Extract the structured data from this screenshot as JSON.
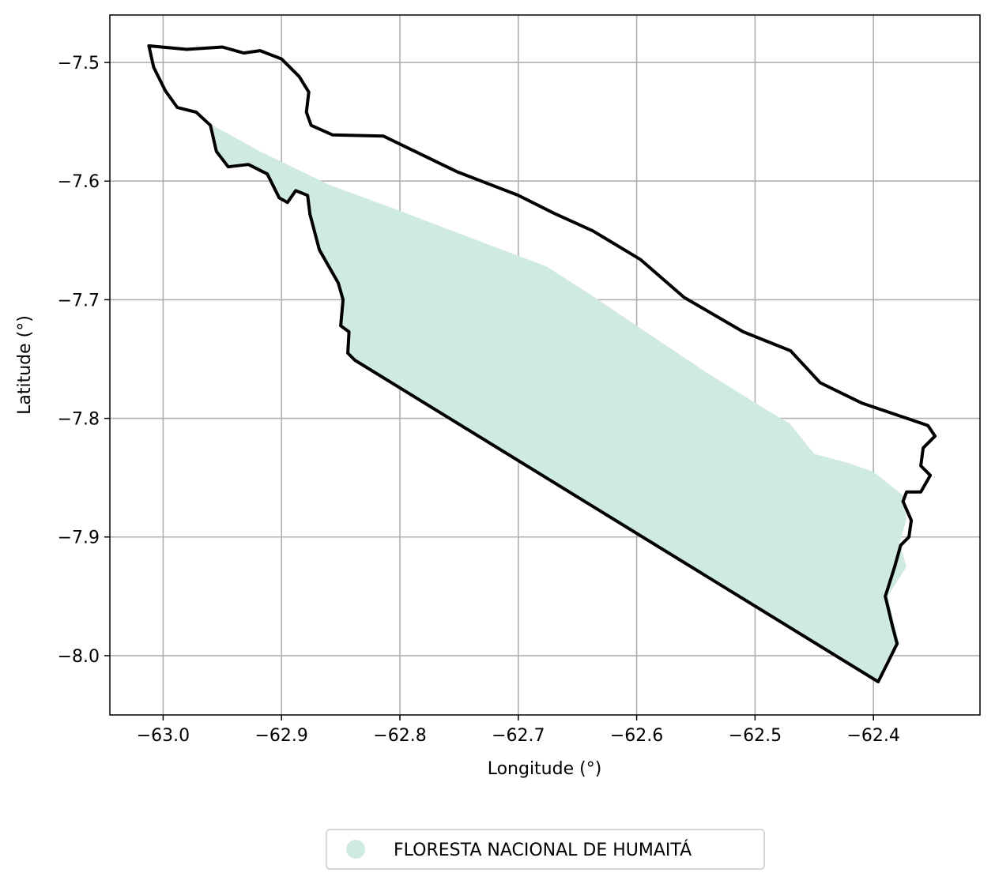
{
  "chart_data": {
    "type": "map",
    "xlabel": "Longitude (°)",
    "ylabel": "Latitude (°)",
    "xlim": [
      -63.045,
      -62.31
    ],
    "ylim": [
      -8.05,
      -7.46
    ],
    "grid": true,
    "x_ticks": [
      -63.0,
      -62.9,
      -62.8,
      -62.7,
      -62.6,
      -62.5,
      -62.4
    ],
    "x_tick_labels": [
      "−63.0",
      "−62.9",
      "−62.8",
      "−62.7",
      "−62.6",
      "−62.5",
      "−62.4"
    ],
    "y_ticks": [
      -7.5,
      -7.6,
      -7.7,
      -7.8,
      -7.9,
      -8.0
    ],
    "y_tick_labels": [
      "−7.5",
      "−7.6",
      "−7.7",
      "−7.8",
      "−7.9",
      "−8.0"
    ],
    "legend": {
      "placement": "bottom-center, outside plot",
      "entries": [
        {
          "label": "FLORESTA NACIONAL DE HUMAITÁ",
          "color": "#cfeade"
        }
      ]
    },
    "colors": {
      "area_fill": "#cfeade",
      "boundary": "#000000",
      "grid": "#b0b0b0"
    },
    "area_polygon": [
      [
        -62.958,
        -7.553
      ],
      [
        -62.918,
        -7.575
      ],
      [
        -62.86,
        -7.603
      ],
      [
        -62.8,
        -7.625
      ],
      [
        -62.74,
        -7.648
      ],
      [
        -62.676,
        -7.672
      ],
      [
        -62.64,
        -7.695
      ],
      [
        -62.6,
        -7.722
      ],
      [
        -62.54,
        -7.762
      ],
      [
        -62.49,
        -7.793
      ],
      [
        -62.471,
        -7.804
      ],
      [
        -62.45,
        -7.83
      ],
      [
        -62.42,
        -7.838
      ],
      [
        -62.4,
        -7.845
      ],
      [
        -62.385,
        -7.857
      ],
      [
        -62.375,
        -7.865
      ],
      [
        -62.372,
        -7.885
      ],
      [
        -62.378,
        -7.905
      ],
      [
        -62.372,
        -7.925
      ],
      [
        -62.388,
        -7.95
      ],
      [
        -62.382,
        -7.975
      ],
      [
        -62.378,
        -7.99
      ],
      [
        -62.39,
        -8.005
      ],
      [
        -62.396,
        -8.022
      ],
      [
        -62.838,
        -7.751
      ],
      [
        -62.844,
        -7.745
      ],
      [
        -62.843,
        -7.727
      ],
      [
        -62.85,
        -7.722
      ],
      [
        -62.848,
        -7.7
      ],
      [
        -62.852,
        -7.686
      ],
      [
        -62.868,
        -7.658
      ],
      [
        -62.876,
        -7.628
      ],
      [
        -62.878,
        -7.612
      ],
      [
        -62.888,
        -7.608
      ],
      [
        -62.895,
        -7.618
      ],
      [
        -62.902,
        -7.614
      ],
      [
        -62.912,
        -7.594
      ],
      [
        -62.928,
        -7.586
      ],
      [
        -62.945,
        -7.588
      ],
      [
        -62.955,
        -7.575
      ]
    ],
    "boundary_polygon": [
      [
        -63.012,
        -7.486
      ],
      [
        -62.98,
        -7.489
      ],
      [
        -62.95,
        -7.487
      ],
      [
        -62.932,
        -7.492
      ],
      [
        -62.918,
        -7.49
      ],
      [
        -62.9,
        -7.497
      ],
      [
        -62.885,
        -7.512
      ],
      [
        -62.877,
        -7.525
      ],
      [
        -62.879,
        -7.542
      ],
      [
        -62.875,
        -7.553
      ],
      [
        -62.857,
        -7.561
      ],
      [
        -62.814,
        -7.562
      ],
      [
        -62.752,
        -7.592
      ],
      [
        -62.7,
        -7.612
      ],
      [
        -62.67,
        -7.627
      ],
      [
        -62.637,
        -7.642
      ],
      [
        -62.597,
        -7.666
      ],
      [
        -62.56,
        -7.698
      ],
      [
        -62.51,
        -7.727
      ],
      [
        -62.47,
        -7.743
      ],
      [
        -62.445,
        -7.77
      ],
      [
        -62.41,
        -7.787
      ],
      [
        -62.354,
        -7.806
      ],
      [
        -62.348,
        -7.815
      ],
      [
        -62.358,
        -7.825
      ],
      [
        -62.36,
        -7.84
      ],
      [
        -62.352,
        -7.848
      ],
      [
        -62.36,
        -7.862
      ],
      [
        -62.372,
        -7.862
      ],
      [
        -62.375,
        -7.87
      ],
      [
        -62.368,
        -7.886
      ],
      [
        -62.37,
        -7.9
      ],
      [
        -62.377,
        -7.907
      ],
      [
        -62.382,
        -7.925
      ],
      [
        -62.39,
        -7.95
      ],
      [
        -62.384,
        -7.975
      ],
      [
        -62.38,
        -7.99
      ],
      [
        -62.388,
        -8.006
      ],
      [
        -62.396,
        -8.022
      ],
      [
        -62.838,
        -7.751
      ],
      [
        -62.844,
        -7.745
      ],
      [
        -62.843,
        -7.727
      ],
      [
        -62.85,
        -7.722
      ],
      [
        -62.848,
        -7.7
      ],
      [
        -62.852,
        -7.686
      ],
      [
        -62.868,
        -7.658
      ],
      [
        -62.876,
        -7.628
      ],
      [
        -62.878,
        -7.612
      ],
      [
        -62.888,
        -7.608
      ],
      [
        -62.895,
        -7.618
      ],
      [
        -62.902,
        -7.614
      ],
      [
        -62.912,
        -7.594
      ],
      [
        -62.928,
        -7.586
      ],
      [
        -62.945,
        -7.588
      ],
      [
        -62.955,
        -7.575
      ],
      [
        -62.96,
        -7.553
      ],
      [
        -62.972,
        -7.542
      ],
      [
        -62.988,
        -7.538
      ],
      [
        -62.998,
        -7.524
      ],
      [
        -63.008,
        -7.504
      ],
      [
        -63.012,
        -7.486
      ]
    ]
  }
}
